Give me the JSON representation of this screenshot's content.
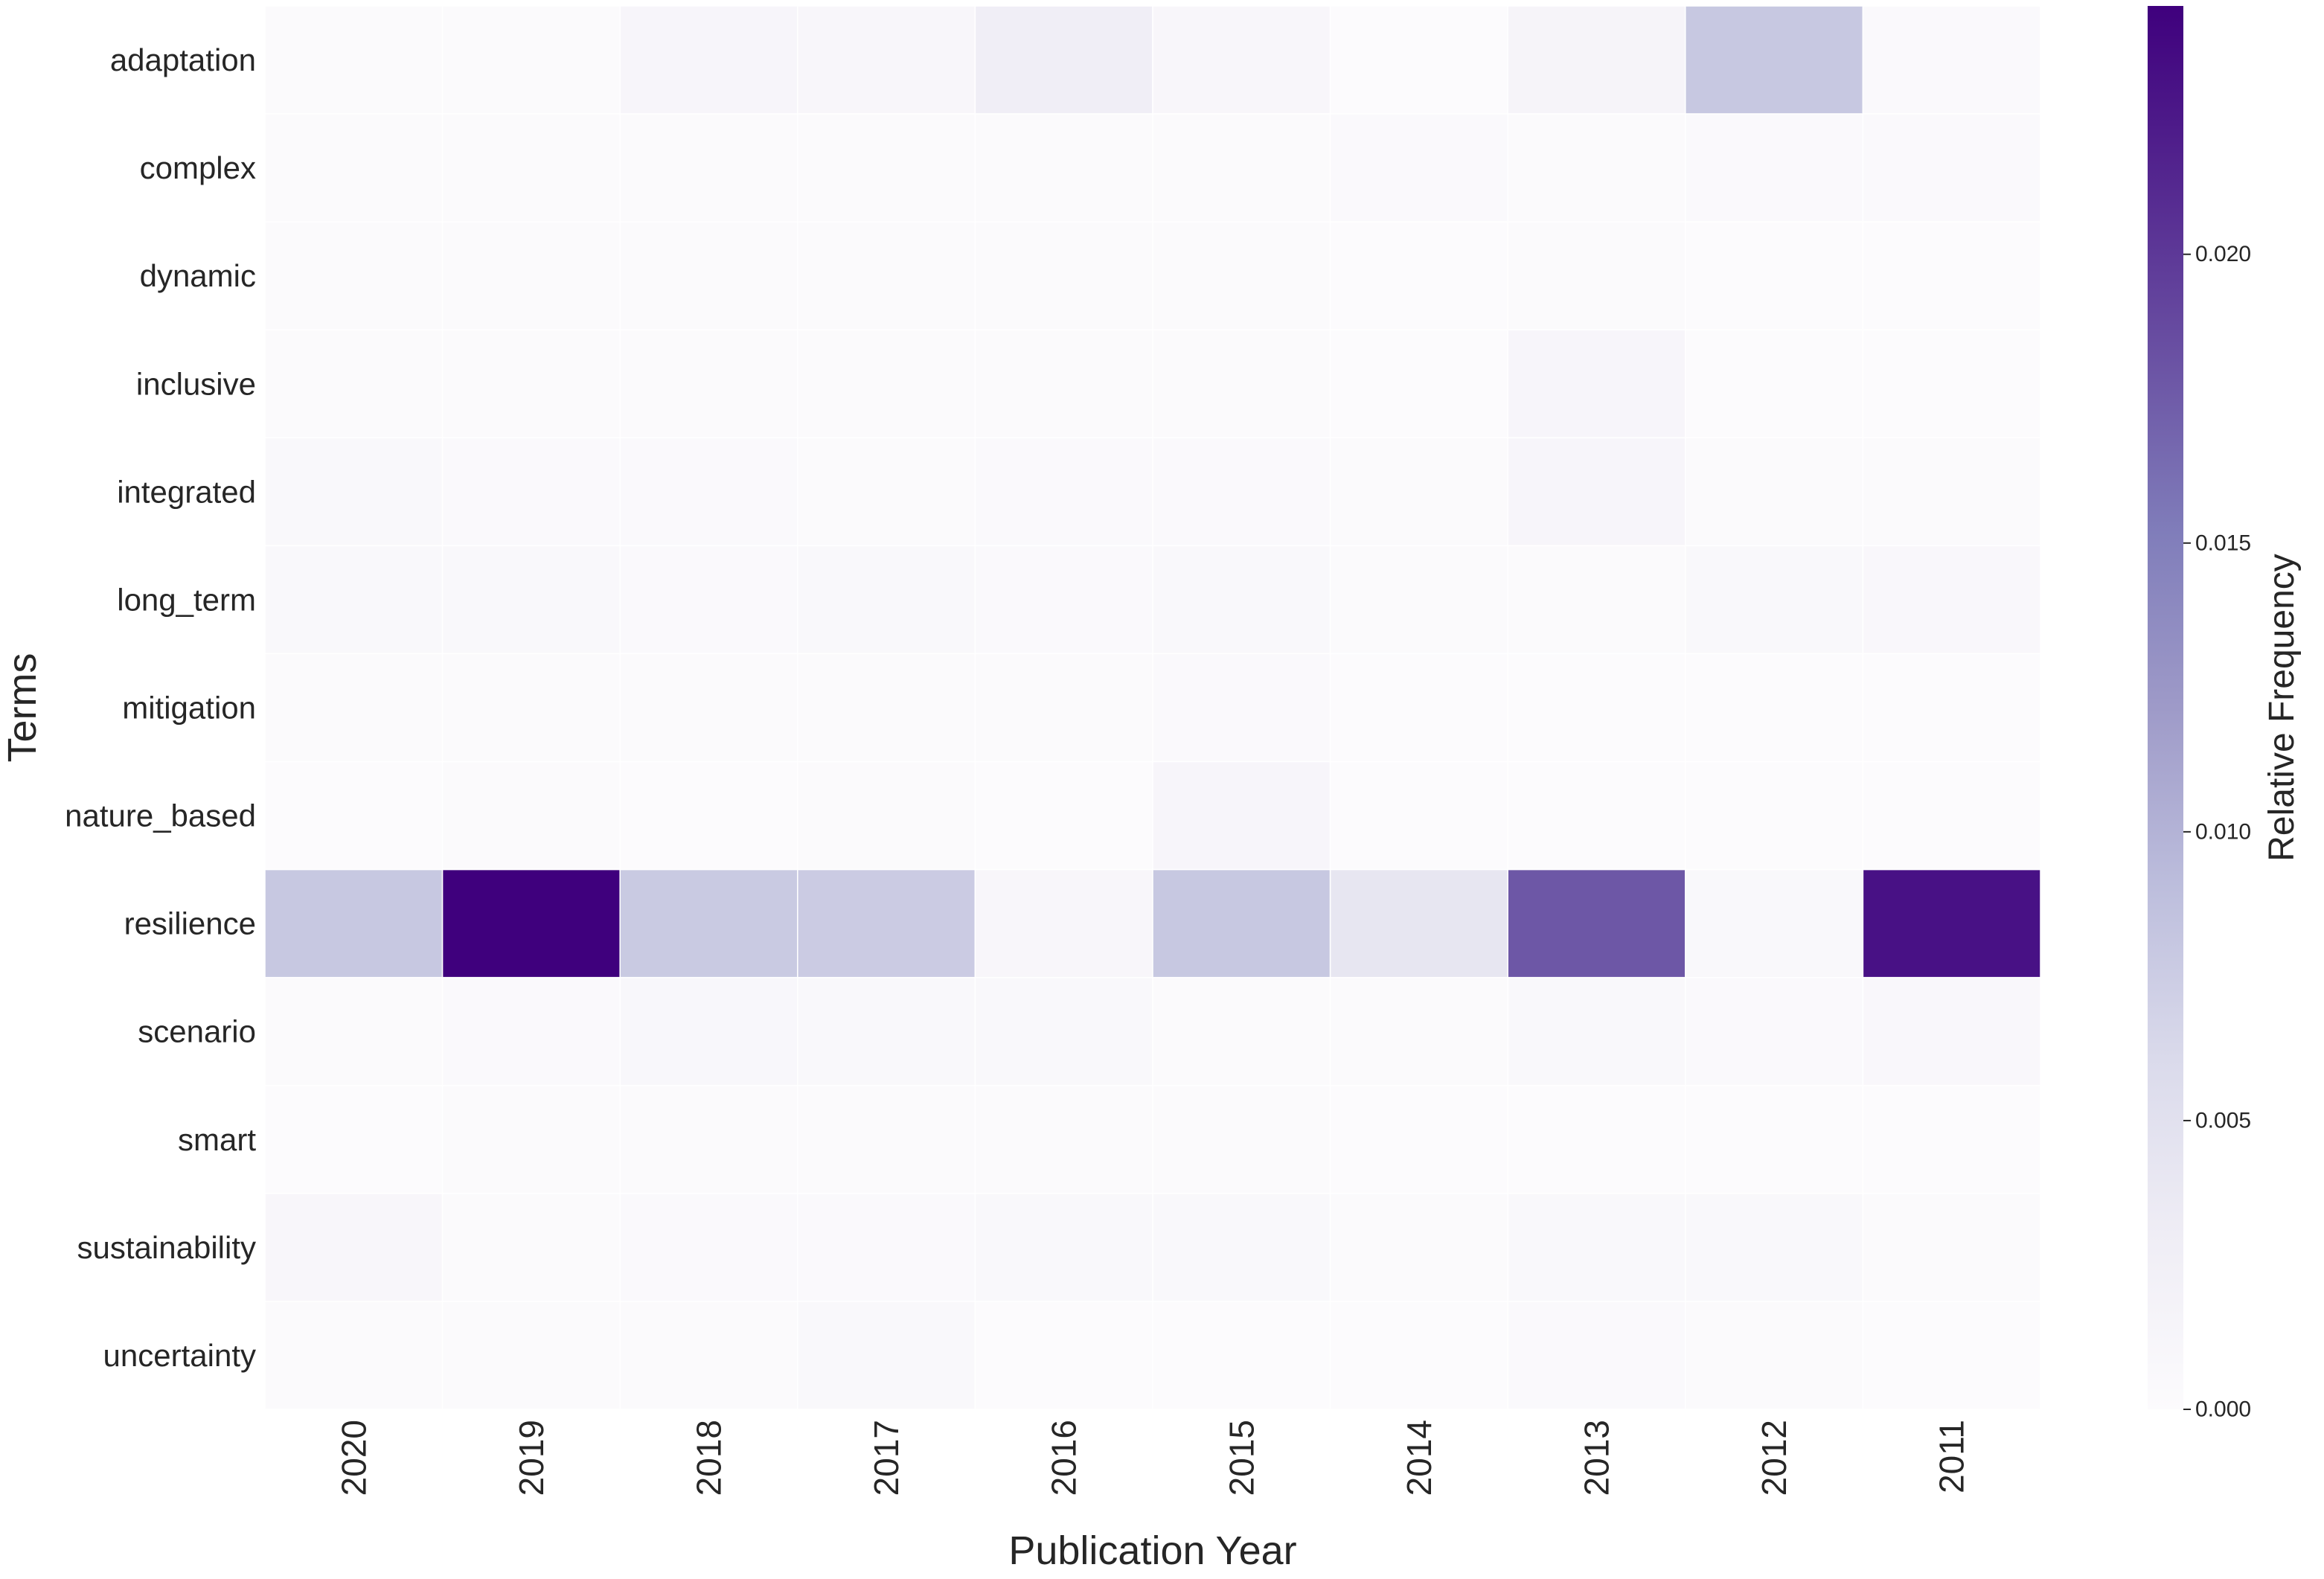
{
  "chart_data": {
    "type": "heatmap",
    "xlabel": "Publication Year",
    "ylabel": "Terms",
    "x": [
      "2020",
      "2019",
      "2018",
      "2017",
      "2016",
      "2015",
      "2014",
      "2013",
      "2012",
      "2011"
    ],
    "y": [
      "adaptation",
      "complex",
      "dynamic",
      "inclusive",
      "integrated",
      "long_term",
      "mitigation",
      "nature_based",
      "resilience",
      "scenario",
      "smart",
      "sustainability",
      "uncertainty"
    ],
    "values": [
      [
        0.0002,
        0.0002,
        0.0012,
        0.001,
        0.0028,
        0.001,
        0.0001,
        0.0015,
        0.008,
        0.0004
      ],
      [
        0.0002,
        0.0003,
        0.0002,
        0.0002,
        0.0002,
        0.0002,
        0.0004,
        0.0003,
        0.0004,
        0.0005
      ],
      [
        0.0002,
        0.0003,
        0.0003,
        0.0003,
        0.0003,
        0.0003,
        0.0001,
        0.0002,
        0.0001,
        0.0001
      ],
      [
        0.0002,
        0.0003,
        0.0003,
        0.0003,
        0.0002,
        0.0003,
        0.0001,
        0.0012,
        0.0001,
        0.0001
      ],
      [
        0.0006,
        0.0004,
        0.0004,
        0.0003,
        0.0005,
        0.0004,
        0.0003,
        0.0012,
        0.0002,
        0.0002
      ],
      [
        0.0007,
        0.0006,
        0.0005,
        0.0007,
        0.0004,
        0.0006,
        0.0002,
        0.0003,
        0.0006,
        0.0008
      ],
      [
        0.0002,
        0.0002,
        0.0002,
        0.0003,
        0.0003,
        0.0005,
        0.0001,
        0.0001,
        0.0001,
        0.0001
      ],
      [
        0.0001,
        0.0002,
        0.0001,
        0.0002,
        0.0001,
        0.0012,
        0.0001,
        0.0001,
        0.0001,
        0.0001
      ],
      [
        0.008,
        0.0243,
        0.0078,
        0.0076,
        0.001,
        0.008,
        0.0042,
        0.0178,
        0.0007,
        0.023
      ],
      [
        0.0002,
        0.0005,
        0.0009,
        0.0006,
        0.0006,
        0.0003,
        0.0003,
        0.0006,
        0.0005,
        0.0008
      ],
      [
        0.0001,
        0.0002,
        0.0002,
        0.0003,
        0.0002,
        0.0002,
        0.0001,
        0.0001,
        0.0001,
        0.0001
      ],
      [
        0.001,
        0.0003,
        0.0004,
        0.0005,
        0.0006,
        0.0007,
        0.0002,
        0.0007,
        0.0006,
        0.0002
      ],
      [
        0.0002,
        0.0003,
        0.0003,
        0.0007,
        0.0001,
        0.0001,
        0.0001,
        0.0005,
        0.0002,
        0.0001
      ]
    ],
    "colorbar": {
      "label": "Relative Frequency",
      "min": 0.0,
      "max": 0.0243,
      "ticks": [
        0.0,
        0.005,
        0.01,
        0.015,
        0.02
      ],
      "tick_labels": [
        "0.000",
        "0.005",
        "0.010",
        "0.015",
        "0.020"
      ],
      "colormap": "Purples",
      "colors": [
        "#fcfbfd",
        "#efedf5",
        "#dadaeb",
        "#bcbddc",
        "#9e9ac8",
        "#807dba",
        "#6a51a3",
        "#54278f",
        "#3f007d"
      ]
    },
    "grid": false,
    "cell_border_color": "#ffffff"
  }
}
